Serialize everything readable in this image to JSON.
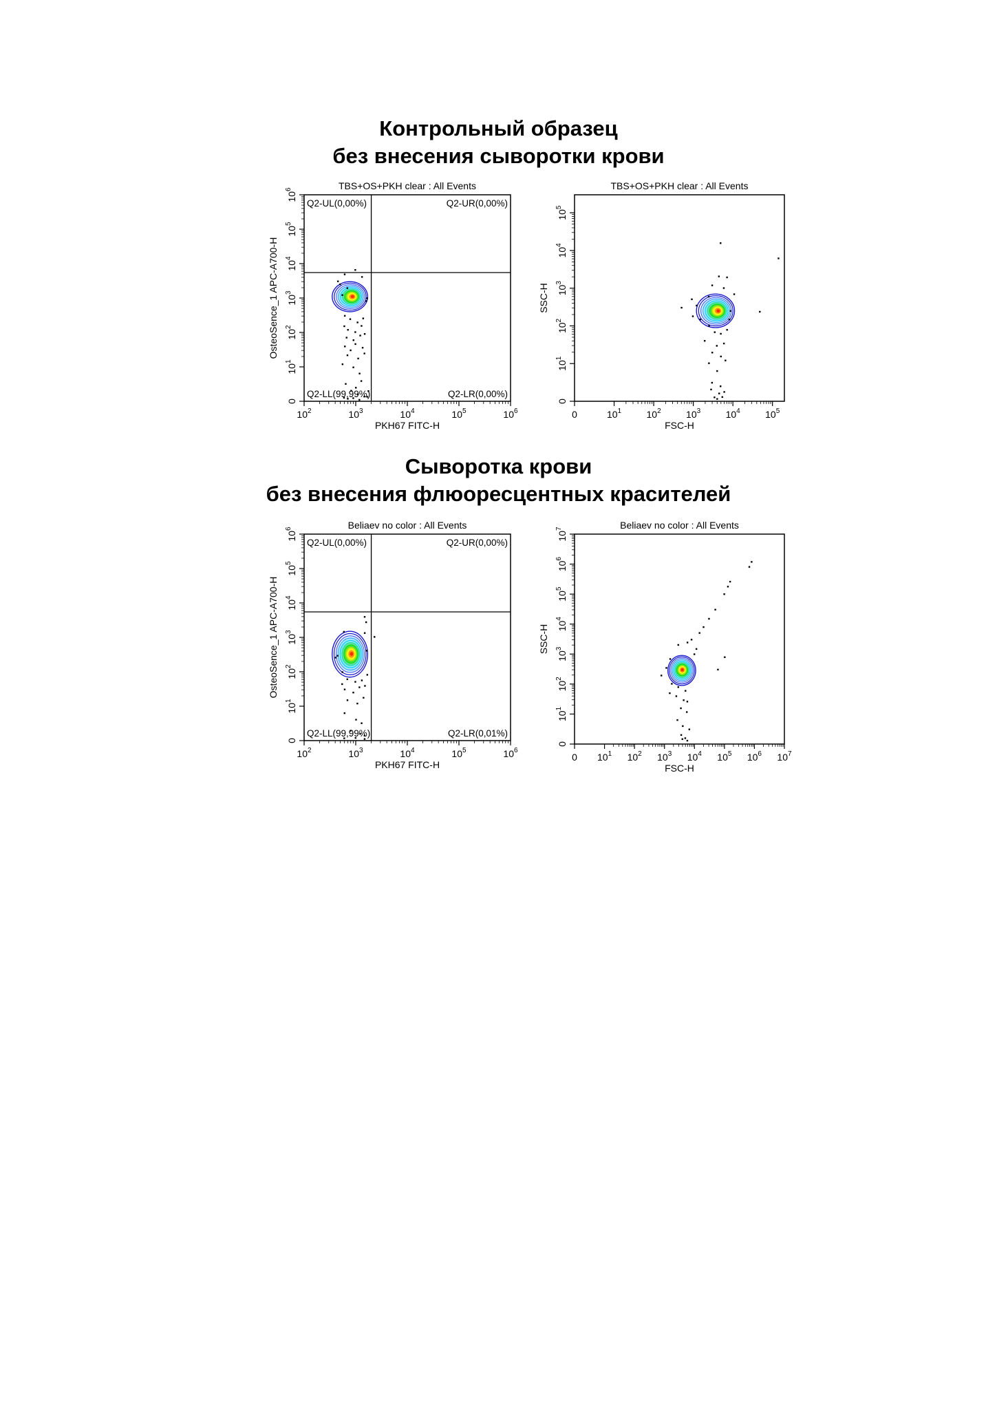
{
  "sections": [
    {
      "title_lines": [
        "Контрольный образец",
        "без внесения сыворотки крови"
      ]
    },
    {
      "title_lines": [
        "Сыворотка крови",
        "без внесения флюоресцентных красителей"
      ]
    }
  ],
  "colors": {
    "contour_outer": "#1a1ad0",
    "contour_mid": "#00c8ff",
    "contour_inner": "#00e000",
    "contour_high": "#ffff00",
    "contour_core": "#ff2000",
    "axis": "#000000"
  },
  "chart_data": [
    {
      "type": "scatter",
      "subtype": "flow-cytometry-contour-with-quadrants",
      "title": "TBS+OS+PKH clear : All Events",
      "xlabel": "PKH67 FITC-H",
      "ylabel": "OsteoSence_1 APC-A700-H",
      "x_scale": "log",
      "y_scale": "biexponential",
      "xlim": [
        100,
        1000000
      ],
      "ylim": [
        0,
        1000000
      ],
      "x_ticks": [
        {
          "base": "10",
          "exp": "2"
        },
        {
          "base": "10",
          "exp": "3"
        },
        {
          "base": "10",
          "exp": "4"
        },
        {
          "base": "10",
          "exp": "5"
        },
        {
          "base": "10",
          "exp": "6"
        }
      ],
      "y_ticks": [
        {
          "base": "0",
          "exp": ""
        },
        {
          "base": "10",
          "exp": "1"
        },
        {
          "base": "10",
          "exp": "2"
        },
        {
          "base": "10",
          "exp": "3"
        },
        {
          "base": "10",
          "exp": "4"
        },
        {
          "base": "10",
          "exp": "5"
        },
        {
          "base": "10",
          "exp": "6"
        }
      ],
      "quadrant_gate": {
        "x": 2000,
        "y": 5500
      },
      "quadrants": [
        {
          "label": "Q2-UL(0,00%)",
          "position": "top-left"
        },
        {
          "label": "Q2-UR(0,00%)",
          "position": "top-right"
        },
        {
          "label": "Q2-LL(99,99%)",
          "position": "bottom-left"
        },
        {
          "label": "Q2-LR(0,00%)",
          "position": "bottom-right"
        }
      ],
      "population": {
        "center": [
          900,
          1100
        ],
        "spread_x": [
          350,
          1700
        ],
        "spread_y": [
          400,
          3000
        ]
      },
      "events": [
        [
          600,
          5000
        ],
        [
          1000,
          6500
        ],
        [
          1300,
          4000
        ],
        [
          500,
          2500
        ],
        [
          450,
          3000
        ],
        [
          700,
          2000
        ],
        [
          1600,
          800
        ],
        [
          550,
          1200
        ],
        [
          1700,
          1000
        ],
        [
          620,
          300
        ],
        [
          800,
          250
        ],
        [
          1100,
          200
        ],
        [
          1400,
          250
        ],
        [
          600,
          150
        ],
        [
          700,
          120
        ],
        [
          1000,
          100
        ],
        [
          1300,
          150
        ],
        [
          650,
          70
        ],
        [
          900,
          60
        ],
        [
          1200,
          80
        ],
        [
          1500,
          90
        ],
        [
          620,
          40
        ],
        [
          800,
          30
        ],
        [
          1000,
          45
        ],
        [
          1350,
          35
        ],
        [
          700,
          22
        ],
        [
          1100,
          18
        ],
        [
          1450,
          25
        ],
        [
          550,
          12
        ],
        [
          900,
          10
        ],
        [
          1200,
          8
        ],
        [
          650,
          5
        ],
        [
          1000,
          4
        ],
        [
          1300,
          6
        ],
        [
          800,
          3
        ],
        [
          1100,
          2
        ],
        [
          1500,
          1.5
        ],
        [
          900,
          1
        ],
        [
          700,
          0.7
        ],
        [
          1200,
          0.5
        ],
        [
          1650,
          1.2
        ],
        [
          580,
          0.9
        ],
        [
          1750,
          3
        ]
      ]
    },
    {
      "type": "scatter",
      "subtype": "flow-cytometry-contour",
      "title": "TBS+OS+PKH clear : All Events",
      "xlabel": "FSC-H",
      "ylabel": "SSC-H",
      "x_scale": "biexponential",
      "y_scale": "biexponential",
      "xlim": [
        0,
        200000
      ],
      "ylim": [
        0,
        300000
      ],
      "x_ticks": [
        {
          "base": "0",
          "exp": ""
        },
        {
          "base": "10",
          "exp": "1"
        },
        {
          "base": "10",
          "exp": "2"
        },
        {
          "base": "10",
          "exp": "3"
        },
        {
          "base": "10",
          "exp": "4"
        },
        {
          "base": "10",
          "exp": "5"
        }
      ],
      "y_ticks": [
        {
          "base": "0",
          "exp": ""
        },
        {
          "base": "10",
          "exp": "1"
        },
        {
          "base": "10",
          "exp": "2"
        },
        {
          "base": "10",
          "exp": "3"
        },
        {
          "base": "10",
          "exp": "4"
        },
        {
          "base": "10",
          "exp": "5"
        }
      ],
      "population": {
        "center": [
          4500,
          250
        ],
        "spread_x": [
          1200,
          11000
        ],
        "spread_y": [
          90,
          700
        ]
      },
      "events": [
        [
          5000,
          16000
        ],
        [
          140000,
          6000
        ],
        [
          4500,
          2000
        ],
        [
          7000,
          1900
        ],
        [
          3000,
          1200
        ],
        [
          6000,
          1000
        ],
        [
          2500,
          600
        ],
        [
          11000,
          700
        ],
        [
          900,
          500
        ],
        [
          500,
          300
        ],
        [
          1000,
          180
        ],
        [
          48000,
          230
        ],
        [
          1200,
          350
        ],
        [
          2500,
          100
        ],
        [
          3500,
          70
        ],
        [
          5000,
          60
        ],
        [
          7000,
          80
        ],
        [
          2000,
          40
        ],
        [
          4000,
          30
        ],
        [
          6000,
          35
        ],
        [
          3000,
          20
        ],
        [
          5000,
          15
        ],
        [
          2500,
          10
        ],
        [
          4000,
          8
        ],
        [
          6500,
          12
        ],
        [
          3000,
          5
        ],
        [
          5000,
          4
        ],
        [
          2800,
          3
        ],
        [
          4500,
          2
        ],
        [
          6000,
          2.5
        ],
        [
          3500,
          1
        ],
        [
          5500,
          1.2
        ],
        [
          4000,
          0.7
        ],
        [
          1500,
          150
        ],
        [
          8000,
          150
        ],
        [
          9000,
          250
        ]
      ]
    },
    {
      "type": "scatter",
      "subtype": "flow-cytometry-contour-with-quadrants",
      "title": "Beliaev no color : All Events",
      "xlabel": "PKH67 FITC-H",
      "ylabel": "OsteoSence_1 APC-A700-H",
      "x_scale": "log",
      "y_scale": "biexponential",
      "xlim": [
        100,
        1000000
      ],
      "ylim": [
        0,
        1000000
      ],
      "x_ticks": [
        {
          "base": "10",
          "exp": "2"
        },
        {
          "base": "10",
          "exp": "3"
        },
        {
          "base": "10",
          "exp": "4"
        },
        {
          "base": "10",
          "exp": "5"
        },
        {
          "base": "10",
          "exp": "6"
        }
      ],
      "y_ticks": [
        {
          "base": "0",
          "exp": ""
        },
        {
          "base": "10",
          "exp": "1"
        },
        {
          "base": "10",
          "exp": "2"
        },
        {
          "base": "10",
          "exp": "3"
        },
        {
          "base": "10",
          "exp": "4"
        },
        {
          "base": "10",
          "exp": "5"
        },
        {
          "base": "10",
          "exp": "6"
        }
      ],
      "quadrant_gate": {
        "x": 2000,
        "y": 5500
      },
      "quadrants": [
        {
          "label": "Q2-UL(0,00%)",
          "position": "top-left"
        },
        {
          "label": "Q2-UR(0,00%)",
          "position": "top-right"
        },
        {
          "label": "Q2-LL(99,99%)",
          "position": "bottom-left"
        },
        {
          "label": "Q2-LR(0,01%)",
          "position": "bottom-right"
        }
      ],
      "population": {
        "center": [
          850,
          330
        ],
        "spread_x": [
          350,
          1700
        ],
        "spread_y": [
          70,
          1500
        ]
      },
      "events": [
        [
          1500,
          4000
        ],
        [
          1600,
          2800
        ],
        [
          2300,
          1000
        ],
        [
          600,
          1500
        ],
        [
          1500,
          1300
        ],
        [
          450,
          300
        ],
        [
          400,
          250
        ],
        [
          1600,
          400
        ],
        [
          550,
          100
        ],
        [
          700,
          60
        ],
        [
          1000,
          50
        ],
        [
          1300,
          55
        ],
        [
          600,
          30
        ],
        [
          900,
          25
        ],
        [
          1200,
          35
        ],
        [
          1500,
          40
        ],
        [
          700,
          15
        ],
        [
          1100,
          12
        ],
        [
          1400,
          18
        ],
        [
          600,
          8
        ],
        [
          1000,
          6
        ],
        [
          1300,
          5
        ],
        [
          800,
          3
        ],
        [
          1200,
          2
        ],
        [
          1500,
          1.5
        ],
        [
          600,
          0.8
        ],
        [
          1000,
          0.7
        ],
        [
          1500,
          0.4
        ],
        [
          550,
          45
        ],
        [
          1650,
          80
        ]
      ]
    },
    {
      "type": "scatter",
      "subtype": "flow-cytometry-contour",
      "title": "Beliaev no color : All Events",
      "xlabel": "FSC-H",
      "ylabel": "SSC-H",
      "x_scale": "biexponential",
      "y_scale": "biexponential",
      "xlim": [
        0,
        10000000
      ],
      "ylim": [
        0,
        10000000
      ],
      "x_ticks": [
        {
          "base": "0",
          "exp": ""
        },
        {
          "base": "10",
          "exp": "1"
        },
        {
          "base": "10",
          "exp": "2"
        },
        {
          "base": "10",
          "exp": "3"
        },
        {
          "base": "10",
          "exp": "4"
        },
        {
          "base": "10",
          "exp": "5"
        },
        {
          "base": "10",
          "exp": "6"
        },
        {
          "base": "10",
          "exp": "7"
        }
      ],
      "y_ticks": [
        {
          "base": "0",
          "exp": ""
        },
        {
          "base": "10",
          "exp": "1"
        },
        {
          "base": "10",
          "exp": "2"
        },
        {
          "base": "10",
          "exp": "3"
        },
        {
          "base": "10",
          "exp": "4"
        },
        {
          "base": "10",
          "exp": "5"
        },
        {
          "base": "10",
          "exp": "6"
        },
        {
          "base": "10",
          "exp": "7"
        }
      ],
      "population": {
        "center": [
          4000,
          300
        ],
        "spread_x": [
          1300,
          11000
        ],
        "spread_y": [
          90,
          900
        ]
      },
      "events": [
        [
          800000,
          1200000
        ],
        [
          700000,
          800000
        ],
        [
          150000,
          250000
        ],
        [
          130000,
          180000
        ],
        [
          100000,
          100000
        ],
        [
          50000,
          30000
        ],
        [
          30000,
          15000
        ],
        [
          20000,
          8000
        ],
        [
          15000,
          5000
        ],
        [
          8000,
          3000
        ],
        [
          6000,
          2500
        ],
        [
          3000,
          2000
        ],
        [
          12000,
          1500
        ],
        [
          10000,
          1000
        ],
        [
          100000,
          800
        ],
        [
          1500,
          700
        ],
        [
          60000,
          300
        ],
        [
          1200,
          350
        ],
        [
          800,
          200
        ],
        [
          1800,
          100
        ],
        [
          3000,
          80
        ],
        [
          5000,
          60
        ],
        [
          2500,
          40
        ],
        [
          4500,
          30
        ],
        [
          6000,
          25
        ],
        [
          3500,
          15
        ],
        [
          5500,
          12
        ],
        [
          2800,
          8
        ],
        [
          4200,
          6
        ],
        [
          6500,
          5
        ],
        [
          3500,
          3
        ],
        [
          5000,
          2
        ],
        [
          4000,
          1.5
        ],
        [
          6000,
          1
        ],
        [
          1500,
          50
        ]
      ]
    }
  ]
}
